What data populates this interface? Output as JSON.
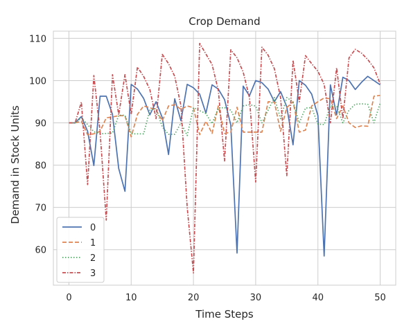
{
  "chart_data": {
    "type": "line",
    "title": "Crop Demand",
    "xlabel": "Time Steps",
    "ylabel": "Demand in Stock Units",
    "xlim": [
      -2.5,
      52.5
    ],
    "ylim": [
      51.6,
      111.7
    ],
    "xticks": [
      0,
      10,
      20,
      30,
      40,
      50
    ],
    "yticks": [
      60,
      70,
      80,
      90,
      100,
      110
    ],
    "grid": true,
    "legend": {
      "position": "lower left"
    },
    "x": [
      0,
      1,
      2,
      3,
      4,
      5,
      6,
      7,
      8,
      9,
      10,
      11,
      12,
      13,
      14,
      15,
      16,
      17,
      18,
      19,
      20,
      21,
      22,
      23,
      24,
      25,
      26,
      27,
      28,
      29,
      30,
      31,
      32,
      33,
      34,
      35,
      36,
      37,
      38,
      39,
      40,
      41,
      42,
      43,
      44,
      45,
      46,
      47,
      48,
      49,
      50
    ],
    "series": [
      {
        "name": "0",
        "color": "#4c72b0",
        "dash": "solid",
        "values": [
          90.0,
          90.0,
          91.5,
          88.0,
          79.9,
          96.3,
          96.3,
          92.0,
          79.2,
          73.8,
          99.1,
          98.0,
          95.8,
          91.9,
          95.0,
          91.2,
          82.5,
          95.7,
          90.5,
          99.1,
          98.3,
          96.8,
          92.3,
          99.0,
          98.0,
          95.5,
          89.5,
          59.2,
          98.7,
          96.4,
          100.0,
          99.5,
          98.0,
          95.0,
          97.4,
          93.8,
          84.8,
          100.0,
          98.9,
          96.8,
          91.7,
          58.5,
          99.0,
          91.9,
          100.8,
          100.0,
          97.9,
          99.6,
          101.0,
          100.0,
          99.0
        ]
      },
      {
        "name": "1",
        "color": "#dd8452",
        "dash": "dashed",
        "values": [
          90.0,
          90.0,
          90.4,
          87.2,
          87.4,
          88.0,
          91.2,
          91.4,
          91.7,
          91.7,
          86.7,
          92.0,
          94.0,
          93.6,
          93.0,
          90.5,
          94.0,
          94.3,
          93.2,
          94.0,
          93.6,
          87.2,
          90.4,
          87.5,
          94.0,
          87.5,
          87.8,
          93.7,
          87.8,
          87.8,
          87.8,
          87.8,
          95.0,
          94.9,
          88.0,
          93.6,
          95.0,
          87.8,
          88.3,
          94.0,
          95.0,
          95.9,
          95.7,
          91.0,
          94.0,
          90.0,
          88.9,
          89.3,
          89.2,
          96.3,
          96.5
        ]
      },
      {
        "name": "2",
        "color": "#55a868",
        "dash": "dotted",
        "values": [
          90.0,
          90.0,
          91.2,
          89.6,
          87.9,
          87.4,
          87.5,
          87.6,
          91.8,
          91.8,
          87.4,
          87.4,
          87.4,
          93.0,
          93.4,
          89.0,
          87.3,
          87.3,
          90.0,
          87.0,
          93.6,
          92.9,
          92.2,
          89.8,
          93.5,
          93.6,
          93.0,
          90.0,
          94.0,
          94.3,
          94.0,
          90.0,
          93.0,
          96.0,
          91.0,
          96.0,
          95.0,
          90.0,
          93.5,
          93.6,
          89.7,
          89.6,
          94.0,
          94.0,
          90.0,
          93.0,
          94.4,
          94.5,
          94.4,
          90.0,
          94.7
        ]
      },
      {
        "name": "3",
        "color": "#c44e52",
        "dash": "dashdot",
        "values": [
          90.0,
          90.0,
          94.9,
          75.4,
          101.2,
          87.9,
          67.0,
          101.4,
          91.9,
          101.4,
          92.0,
          103.2,
          101.0,
          97.9,
          91.0,
          106.2,
          104.0,
          101.0,
          94.0,
          70.0,
          54.5,
          108.8,
          106.3,
          103.8,
          97.7,
          81.0,
          107.3,
          105.4,
          102.0,
          96.0,
          76.0,
          107.9,
          106.0,
          102.8,
          96.0,
          77.5,
          104.8,
          95.0,
          105.9,
          104.0,
          102.2,
          99.1,
          90.0,
          103.0,
          91.0,
          105.4,
          107.4,
          106.5,
          105.0,
          103.0,
          99.2
        ]
      }
    ]
  }
}
